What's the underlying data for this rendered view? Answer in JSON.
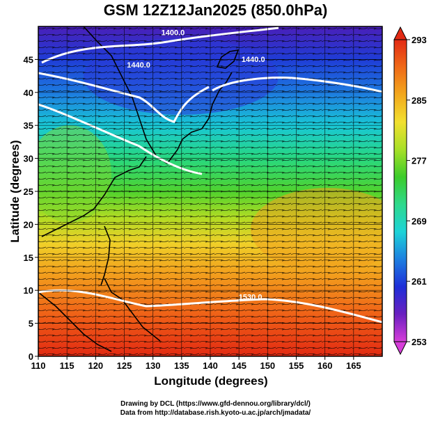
{
  "title": "GSM 12Z12Jan2025 (850.0hPa)",
  "xlabel": "Longitude (degrees)",
  "ylabel": "Latitude  (degrees)",
  "credits": [
    "Drawing by DCL (https://www.gfd-dennou.org/library/dcl/)",
    "Data from http://database.rish.kyoto-u.ac.jp/arch/jmadata/"
  ],
  "map": {
    "lon_range": [
      110,
      170
    ],
    "lat_range": [
      0,
      50
    ],
    "x_ticks": [
      "110",
      "115",
      "120",
      "125",
      "130",
      "135",
      "140",
      "145",
      "150",
      "155",
      "160",
      "165"
    ],
    "y_ticks": [
      "0",
      "5",
      "10",
      "15",
      "20",
      "25",
      "30",
      "35",
      "40",
      "45"
    ],
    "grid": true,
    "fill_variable": "temperature",
    "contour_variable": "geopotential height",
    "contour_labels": [
      {
        "text": "1400.0",
        "lon": 133.5,
        "lat": 48.7
      },
      {
        "text": "1440.0",
        "lon": 127.5,
        "lat": 43.8
      },
      {
        "text": "1440.0",
        "lon": 147.5,
        "lat": 44.6
      },
      {
        "text": "1530.0",
        "lon": 147.0,
        "lat": 8.6
      }
    ]
  },
  "colorbar": {
    "ticks": [
      "293",
      "285",
      "277",
      "269",
      "261",
      "253"
    ],
    "min": 253,
    "max": 293,
    "colors": [
      "#d63ed9",
      "#6a20c0",
      "#1e2ed8",
      "#1d7fe0",
      "#1dd3d8",
      "#2ed98c",
      "#3ccc2a",
      "#a8e028",
      "#f2e030",
      "#f2a81d",
      "#f06a18",
      "#e22a14"
    ]
  }
}
